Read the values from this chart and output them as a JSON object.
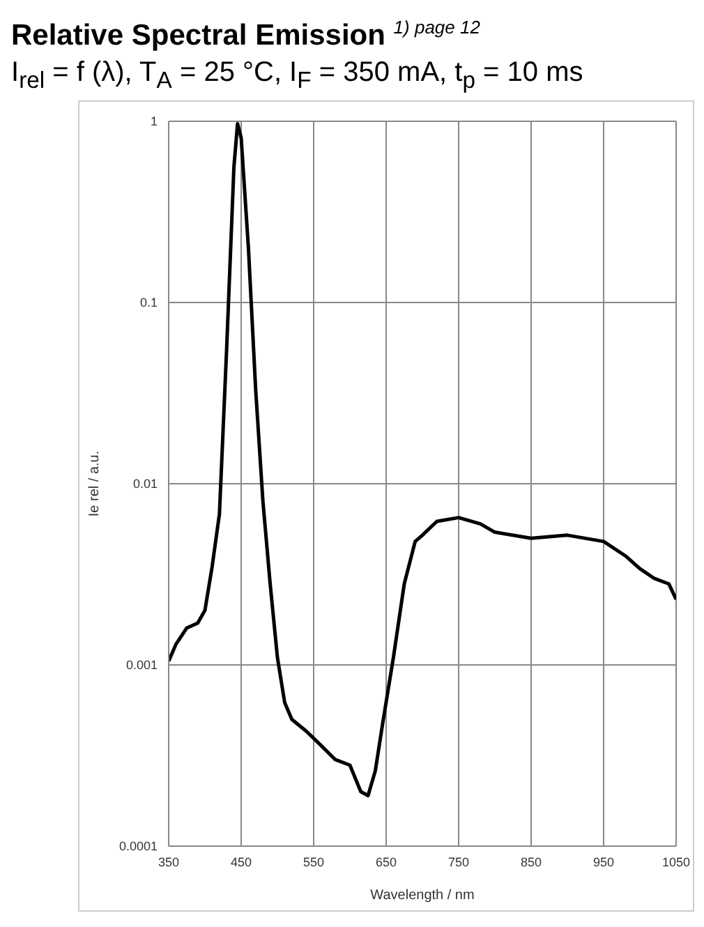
{
  "chart_data": {
    "type": "line",
    "title": "Relative Spectral Emission $^{1) page 12}$",
    "subtitle": "I$_{rel}$ = f (λ), T$_{A}$ = 25 °C, I$_{F}$ = 350 mA, t$_{p}$ = 10 ms",
    "xlabel": "Wavelength / nm",
    "ylabel": "Ie rel / a.u.",
    "x": [
      350,
      360,
      375,
      390,
      400,
      410,
      420,
      430,
      440,
      445,
      450,
      460,
      470,
      480,
      490,
      500,
      510,
      520,
      540,
      560,
      580,
      600,
      615,
      625,
      635,
      645,
      660,
      675,
      690,
      700,
      720,
      750,
      780,
      800,
      850,
      900,
      950,
      980,
      1000,
      1020,
      1040,
      1050
    ],
    "series": [
      {
        "color": "#000000",
        "values": [
          0.00105,
          0.0013,
          0.0016,
          0.0017,
          0.002,
          0.0035,
          0.0068,
          0.056,
          0.56,
          0.97,
          0.81,
          0.2,
          0.033,
          0.008,
          0.0028,
          0.0011,
          0.00062,
          0.0005,
          0.00043,
          0.00036,
          0.0003,
          0.00028,
          0.0002,
          0.00019,
          0.00026,
          0.00047,
          0.0011,
          0.0028,
          0.0048,
          0.0052,
          0.0062,
          0.0065,
          0.006,
          0.0054,
          0.005,
          0.0052,
          0.0048,
          0.004,
          0.0034,
          0.003,
          0.0028,
          0.0023
        ]
      }
    ],
    "xlim": [
      350,
      1050
    ],
    "xticks": [
      350,
      450,
      550,
      650,
      750,
      850,
      950,
      1050
    ],
    "ylim": [
      0.0001,
      1
    ],
    "yticks": [
      0.0001,
      0.001,
      0.01,
      0.1,
      1
    ],
    "log": true,
    "grid": true,
    "legend": false,
    "marker": "none",
    "line_style": "solid"
  }
}
